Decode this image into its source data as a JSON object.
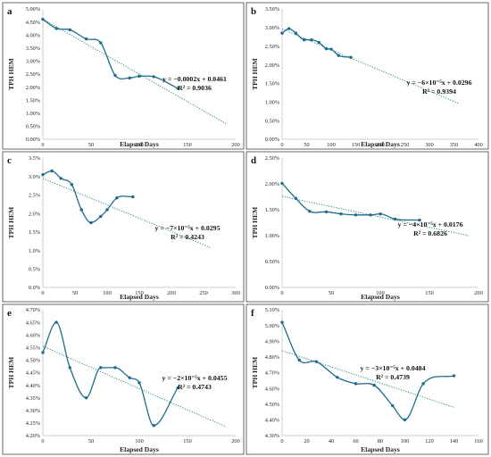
{
  "colors": {
    "series": "#1f6b8c",
    "trend": "#2a8a8a"
  },
  "chart_data": [
    {
      "type": "line",
      "panel": "a",
      "xlabel": "Elapsed Days",
      "ylabel": "TPH HEM",
      "xlim": [
        0,
        200
      ],
      "ylim": [
        0,
        5
      ],
      "xticks": [
        0,
        50,
        100,
        150,
        200
      ],
      "yticks": [
        0,
        0.5,
        1,
        1.5,
        2,
        2.5,
        3,
        3.5,
        4,
        4.5,
        5
      ],
      "ytick_labels": [
        "0.00%",
        "0.50%",
        "1.00%",
        "1.50%",
        "2.00%",
        "2.50%",
        "3.00%",
        "3.50%",
        "4.00%",
        "4.50%",
        "5.00%"
      ],
      "x": [
        0,
        14,
        28,
        45,
        60,
        75,
        90,
        100,
        115,
        140
      ],
      "y": [
        4.6,
        4.25,
        4.2,
        3.85,
        3.7,
        2.45,
        2.35,
        2.42,
        2.4,
        1.95
      ],
      "trend": {
        "x0": 0,
        "y0": 4.61,
        "x1": 190,
        "y1": 0.6
      },
      "equation": "y = −0.0002x + 0.0461",
      "r2": "R² = 0.9036"
    },
    {
      "type": "line",
      "panel": "b",
      "xlabel": "Elapsed Days",
      "ylabel": "TPH HEM",
      "xlim": [
        0,
        400
      ],
      "ylim": [
        0,
        3.5
      ],
      "xticks": [
        0,
        50,
        100,
        150,
        200,
        250,
        300,
        350,
        400
      ],
      "yticks": [
        0,
        0.5,
        1,
        1.5,
        2,
        2.5,
        3,
        3.5
      ],
      "ytick_labels": [
        "0.00%",
        "0.50%",
        "1.00%",
        "1.50%",
        "2.00%",
        "2.50%",
        "3.00%",
        "3.50%"
      ],
      "x": [
        0,
        14,
        28,
        45,
        60,
        75,
        90,
        100,
        115,
        140
      ],
      "y": [
        2.85,
        2.97,
        2.85,
        2.67,
        2.67,
        2.6,
        2.43,
        2.42,
        2.25,
        2.2
      ],
      "trend": {
        "x0": 0,
        "y0": 2.96,
        "x1": 360,
        "y1": 0.96
      },
      "equation": "y = −6×10⁻⁵x + 0.0296",
      "r2": "R² = 0.9394"
    },
    {
      "type": "line",
      "panel": "c",
      "xlabel": "Elapsed Days",
      "ylabel": "TPH HEM",
      "xlim": [
        0,
        300
      ],
      "ylim": [
        0,
        3.5
      ],
      "xticks": [
        0,
        50,
        100,
        150,
        200,
        250,
        300
      ],
      "yticks": [
        0,
        0.5,
        1,
        1.5,
        2,
        2.5,
        3,
        3.5
      ],
      "ytick_labels": [
        "0.0%",
        "0.5%",
        "1.0%",
        "1.5%",
        "2.0%",
        "2.5%",
        "3.0%",
        "3.5%"
      ],
      "x": [
        0,
        14,
        28,
        45,
        60,
        75,
        90,
        100,
        115,
        140
      ],
      "y": [
        3.05,
        3.15,
        2.95,
        2.78,
        2.1,
        1.75,
        1.92,
        2.1,
        2.42,
        2.45
      ],
      "trend": {
        "x0": 0,
        "y0": 2.95,
        "x1": 260,
        "y1": 1.08
      },
      "equation": "y = −7×10⁻⁵x + 0.0295",
      "r2": "R² = 0.4243"
    },
    {
      "type": "line",
      "panel": "d",
      "xlabel": "Elapsed Days",
      "ylabel": "TPH HEM",
      "xlim": [
        0,
        200
      ],
      "ylim": [
        0,
        2.5
      ],
      "xticks": [
        0,
        50,
        100,
        150,
        200
      ],
      "yticks": [
        0,
        0.5,
        1,
        1.5,
        2,
        2.5
      ],
      "ytick_labels": [
        "0.00%",
        "0.50%",
        "1.00%",
        "1.50%",
        "2.00%",
        "2.50%"
      ],
      "x": [
        0,
        14,
        28,
        45,
        60,
        75,
        90,
        100,
        115,
        140
      ],
      "y": [
        2.01,
        1.72,
        1.47,
        1.46,
        1.42,
        1.4,
        1.4,
        1.42,
        1.32,
        1.3
      ],
      "trend": {
        "x0": 0,
        "y0": 1.76,
        "x1": 190,
        "y1": 1.0
      },
      "equation": "y = −4×10⁻⁵x + 0.0176",
      "r2": "R² = 0.6826"
    },
    {
      "type": "line",
      "panel": "e",
      "xlabel": "Elapsed Days",
      "ylabel": "TPH HEM",
      "xlim": [
        0,
        200
      ],
      "ylim": [
        4.2,
        4.7
      ],
      "xticks": [
        0,
        50,
        100,
        150,
        200
      ],
      "yticks": [
        4.2,
        4.25,
        4.3,
        4.35,
        4.4,
        4.45,
        4.5,
        4.55,
        4.6,
        4.65,
        4.7
      ],
      "ytick_labels": [
        "4.20%",
        "4.25%",
        "4.30%",
        "4.35%",
        "4.40%",
        "4.45%",
        "4.50%",
        "4.55%",
        "4.60%",
        "4.65%",
        "4.70%"
      ],
      "x": [
        0,
        14,
        28,
        45,
        60,
        75,
        90,
        100,
        115,
        140
      ],
      "y": [
        4.53,
        4.65,
        4.47,
        4.35,
        4.47,
        4.47,
        4.43,
        4.41,
        4.24,
        4.39
      ],
      "trend": {
        "x0": 0,
        "y0": 4.555,
        "x1": 190,
        "y1": 4.235
      },
      "equation": "y = −2×10⁻⁵x + 0.0455",
      "r2": "R² = 0.4743"
    },
    {
      "type": "line",
      "panel": "f",
      "xlabel": "Elapsed Days",
      "ylabel": "TPH HEM",
      "xlim": [
        0,
        160
      ],
      "ylim": [
        4.3,
        5.1
      ],
      "xticks": [
        0,
        20,
        40,
        60,
        80,
        100,
        120,
        140,
        160
      ],
      "yticks": [
        4.3,
        4.4,
        4.5,
        4.6,
        4.7,
        4.8,
        4.9,
        5.0,
        5.1
      ],
      "ytick_labels": [
        "4.30%",
        "4.40%",
        "4.50%",
        "4.60%",
        "4.70%",
        "4.80%",
        "4.90%",
        "5.00%",
        "5.10%"
      ],
      "x": [
        0,
        14,
        28,
        45,
        60,
        75,
        90,
        100,
        115,
        140
      ],
      "y": [
        5.02,
        4.78,
        4.77,
        4.67,
        4.63,
        4.62,
        4.49,
        4.4,
        4.63,
        4.68
      ],
      "trend": {
        "x0": 0,
        "y0": 4.84,
        "x1": 140,
        "y1": 4.48
      },
      "equation": "y = −3×10⁻⁵x + 0.0484",
      "r2": "R² = 0.4739"
    }
  ]
}
